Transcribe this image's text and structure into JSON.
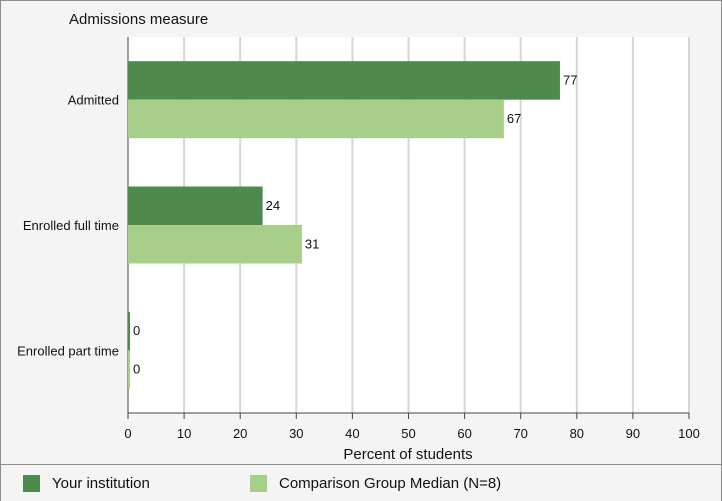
{
  "chart_data": {
    "type": "bar",
    "orientation": "horizontal",
    "title": "Admissions measure",
    "xlabel": "Percent of students",
    "ylabel": "",
    "categories": [
      "Admitted",
      "Enrolled full time",
      "Enrolled part time"
    ],
    "series": [
      {
        "name": "Your institution",
        "values": [
          77,
          24,
          0
        ],
        "color": "#4e8a4e"
      },
      {
        "name": "Comparison Group Median (N=8)",
        "values": [
          67,
          31,
          0
        ],
        "color": "#a8cf8a"
      }
    ],
    "xlim": [
      0,
      100
    ],
    "ticks": [
      "0",
      "10",
      "20",
      "30",
      "40",
      "50",
      "60",
      "70",
      "80",
      "90",
      "100"
    ],
    "grid": true,
    "legend_position": "bottom",
    "data_labels": true
  }
}
